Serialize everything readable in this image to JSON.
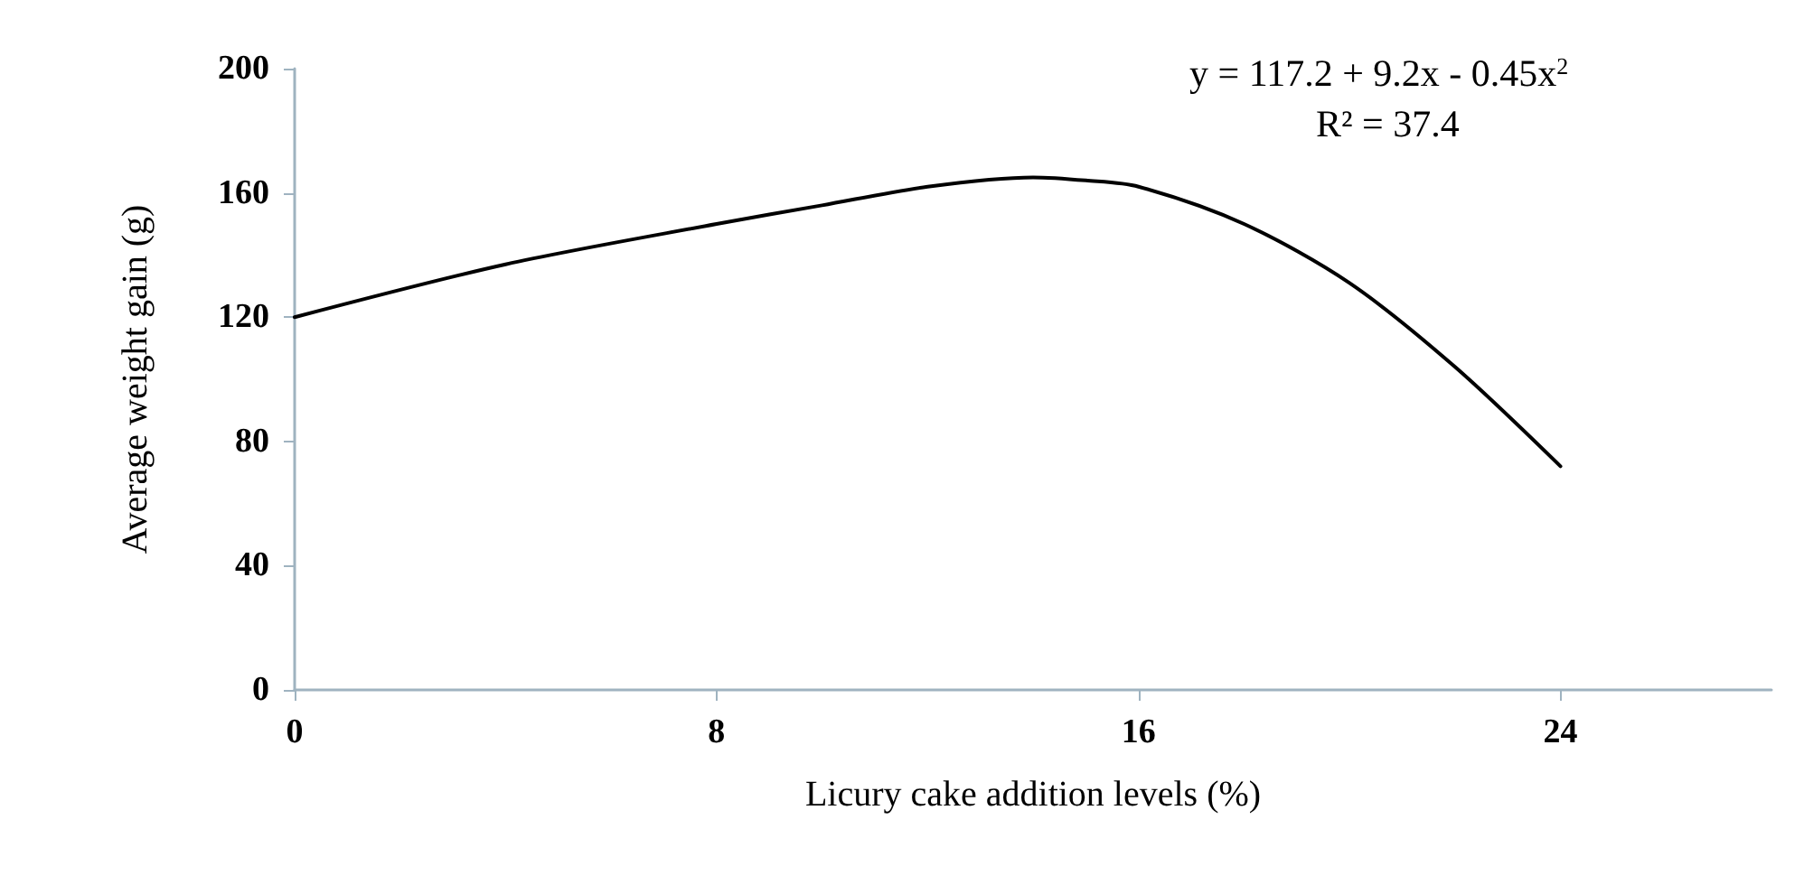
{
  "chart_data": {
    "type": "line",
    "xlabel": "Licury cake addition levels (%)",
    "ylabel": "Average weight gain (g)",
    "annotations": [
      "y = 117.2 + 9.2x - 0.45x$^{2}$",
      "R² = 37.4"
    ],
    "x": [
      0,
      4,
      8,
      10,
      12,
      14,
      15,
      16,
      18,
      20,
      22,
      24
    ],
    "series": [
      {
        "color": "#000000",
        "values": [
          120,
          137,
          150,
          156,
          162,
          165,
          164,
          162,
          150,
          131,
          104,
          72
        ]
      }
    ],
    "xlim": [
      0,
      28
    ],
    "xticks": [
      0,
      8,
      16,
      24
    ],
    "ylim": [
      0,
      200
    ],
    "yticks": [
      0,
      40,
      80,
      120,
      160,
      200
    ],
    "grid": false,
    "marker": "none",
    "line_style": "solid"
  }
}
